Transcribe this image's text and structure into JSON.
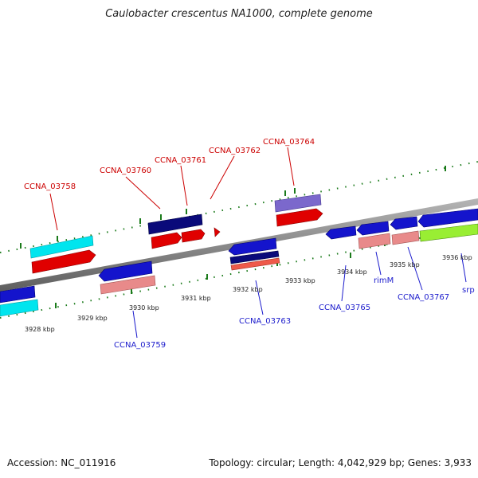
{
  "title": "Caulobacter crescentus NA1000, complete genome",
  "footer": {
    "accession": "Accession: NC_011916",
    "topology": "Topology: circular; Length: 4,042,929 bp; Genes: 3,933"
  },
  "colors": {
    "forward_label": "#cc0000",
    "reverse_label": "#1a1acc",
    "tick": "#1a7a1a",
    "backbone": "#8a8a8a"
  },
  "kbp_ticks": [
    "3928 kbp",
    "3929 kbp",
    "3930 kbp",
    "3931 kbp",
    "3932 kbp",
    "3933 kbp",
    "3934 kbp",
    "3935 kbp",
    "3936 kbp"
  ],
  "forward_genes": [
    {
      "name": "CCNA_03758",
      "row1_color": "#00e5ee",
      "row2_color": "#e00000"
    },
    {
      "name": "CCNA_03760",
      "row1_color": "#0a0a7a",
      "row2_color": "#e00000"
    },
    {
      "name": "CCNA_03761",
      "row2_color": "#e00000"
    },
    {
      "name": "CCNA_03762",
      "row2_color": "#e00000"
    },
    {
      "name": "CCNA_03764",
      "row1_color": "#7b68cc",
      "row2_color": "#e00000"
    }
  ],
  "reverse_genes": [
    {
      "name": "CCNA_03759",
      "row1_color": "#1414cc",
      "row2_color": "#e88a8a"
    },
    {
      "name": "CCNA_03763",
      "row1_color": "#1414cc",
      "row2_color": "#ee5a4a"
    },
    {
      "name": "CCNA_03765",
      "row1_color": "#1414cc"
    },
    {
      "name": "rimM",
      "row1_color": "#1414cc",
      "row2_color": "#e88a8a"
    },
    {
      "name": "CCNA_03767",
      "row1_color": "#1414cc",
      "row2_color": "#e88a8a"
    },
    {
      "name": "srp",
      "row1_color": "#1414cc",
      "row2_color": "#99ee33"
    }
  ]
}
